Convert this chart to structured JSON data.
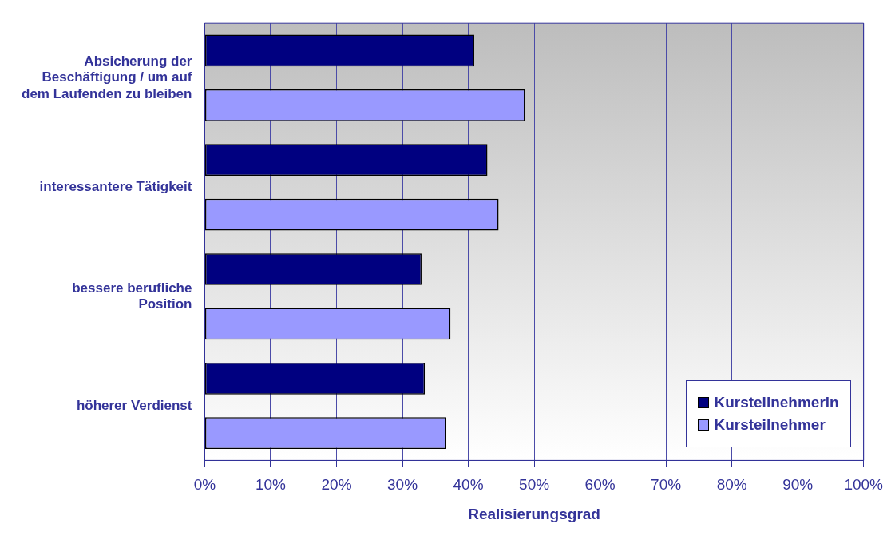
{
  "chart_data": {
    "type": "bar",
    "orientation": "horizontal",
    "xlabel": "Realisierungsgrad",
    "categories": [
      "Absicherung der Beschäftigung / um auf dem Laufenden zu bleiben",
      "interessantere Tätigkeit",
      "bessere berufliche Position",
      "höherer Verdienst"
    ],
    "series": [
      {
        "name": "Kursteilnehmerin",
        "color": "#000080",
        "values": [
          40.9,
          42.9,
          32.9,
          33.4
        ]
      },
      {
        "name": "Kursteilnehmer",
        "color": "#9999ff",
        "values": [
          48.6,
          44.6,
          37.3,
          36.6
        ]
      }
    ],
    "xlim": [
      0,
      100
    ],
    "xticks": [
      {
        "value": 0,
        "label": "0%"
      },
      {
        "value": 10,
        "label": "10%"
      },
      {
        "value": 20,
        "label": "20%"
      },
      {
        "value": 30,
        "label": "30%"
      },
      {
        "value": 40,
        "label": "40%"
      },
      {
        "value": 50,
        "label": "50%"
      },
      {
        "value": 60,
        "label": "60%"
      },
      {
        "value": 70,
        "label": "70%"
      },
      {
        "value": 80,
        "label": "80%"
      },
      {
        "value": 90,
        "label": "90%"
      },
      {
        "value": 100,
        "label": "100%"
      }
    ],
    "grid": "x",
    "legend": "bottom right"
  }
}
